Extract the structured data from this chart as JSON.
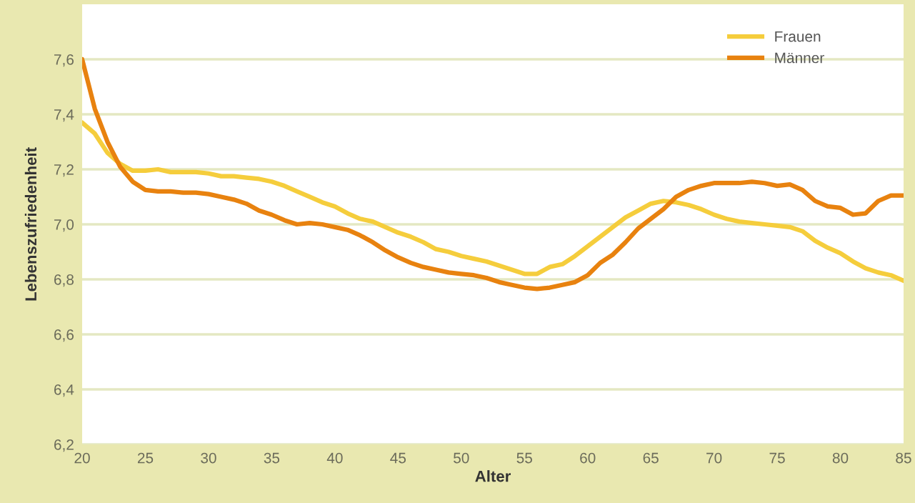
{
  "chart_data": {
    "type": "line",
    "xlabel": "Alter",
    "ylabel": "Lebenszufriedenheit",
    "x": [
      20,
      21,
      22,
      23,
      24,
      25,
      26,
      27,
      28,
      29,
      30,
      31,
      32,
      33,
      34,
      35,
      36,
      37,
      38,
      39,
      40,
      41,
      42,
      43,
      44,
      45,
      46,
      47,
      48,
      49,
      50,
      51,
      52,
      53,
      54,
      55,
      56,
      57,
      58,
      59,
      60,
      61,
      62,
      63,
      64,
      65,
      66,
      67,
      68,
      69,
      70,
      71,
      72,
      73,
      74,
      75,
      76,
      77,
      78,
      79,
      80,
      81,
      82,
      83,
      84,
      85
    ],
    "series": [
      {
        "name": "Frauen",
        "color": "#f5cd3c",
        "values": [
          7.37,
          7.33,
          7.26,
          7.22,
          7.195,
          7.195,
          7.2,
          7.19,
          7.19,
          7.19,
          7.185,
          7.175,
          7.175,
          7.17,
          7.165,
          7.155,
          7.14,
          7.12,
          7.1,
          7.08,
          7.065,
          7.04,
          7.02,
          7.01,
          6.99,
          6.97,
          6.955,
          6.935,
          6.91,
          6.9,
          6.885,
          6.875,
          6.865,
          6.85,
          6.835,
          6.82,
          6.82,
          6.845,
          6.855,
          6.885,
          6.92,
          6.955,
          6.99,
          7.025,
          7.05,
          7.075,
          7.085,
          7.08,
          7.07,
          7.055,
          7.035,
          7.02,
          7.01,
          7.005,
          7.0,
          6.995,
          6.99,
          6.975,
          6.94,
          6.915,
          6.895,
          6.865,
          6.84,
          6.825,
          6.815,
          6.795
        ]
      },
      {
        "name": "Männer",
        "color": "#e8820f",
        "values": [
          7.6,
          7.42,
          7.3,
          7.21,
          7.155,
          7.125,
          7.12,
          7.12,
          7.115,
          7.115,
          7.11,
          7.1,
          7.09,
          7.075,
          7.05,
          7.035,
          7.015,
          7.0,
          7.005,
          7.0,
          6.99,
          6.98,
          6.96,
          6.935,
          6.905,
          6.88,
          6.86,
          6.845,
          6.835,
          6.825,
          6.82,
          6.815,
          6.805,
          6.79,
          6.78,
          6.77,
          6.765,
          6.77,
          6.78,
          6.79,
          6.815,
          6.86,
          6.89,
          6.935,
          6.985,
          7.02,
          7.055,
          7.1,
          7.125,
          7.14,
          7.15,
          7.15,
          7.15,
          7.155,
          7.15,
          7.14,
          7.145,
          7.125,
          7.085,
          7.065,
          7.06,
          7.035,
          7.04,
          7.085,
          7.105,
          7.105
        ]
      }
    ],
    "xlim": [
      20,
      85
    ],
    "xticks": [
      20,
      25,
      30,
      35,
      40,
      45,
      50,
      55,
      60,
      65,
      70,
      75,
      80,
      85
    ],
    "ylim": [
      6.2,
      7.8
    ],
    "yticks": [
      {
        "value": 6.2,
        "label": "6,2"
      },
      {
        "value": 6.4,
        "label": "6,4"
      },
      {
        "value": 6.6,
        "label": "6,6"
      },
      {
        "value": 6.8,
        "label": "6,8"
      },
      {
        "value": 7.0,
        "label": "7,0"
      },
      {
        "value": 7.2,
        "label": "7,2"
      },
      {
        "value": 7.4,
        "label": "7,4"
      },
      {
        "value": 7.6,
        "label": "7,6"
      }
    ],
    "grid": "y",
    "legend": "top right",
    "marker": "none",
    "line_style": "solid"
  }
}
